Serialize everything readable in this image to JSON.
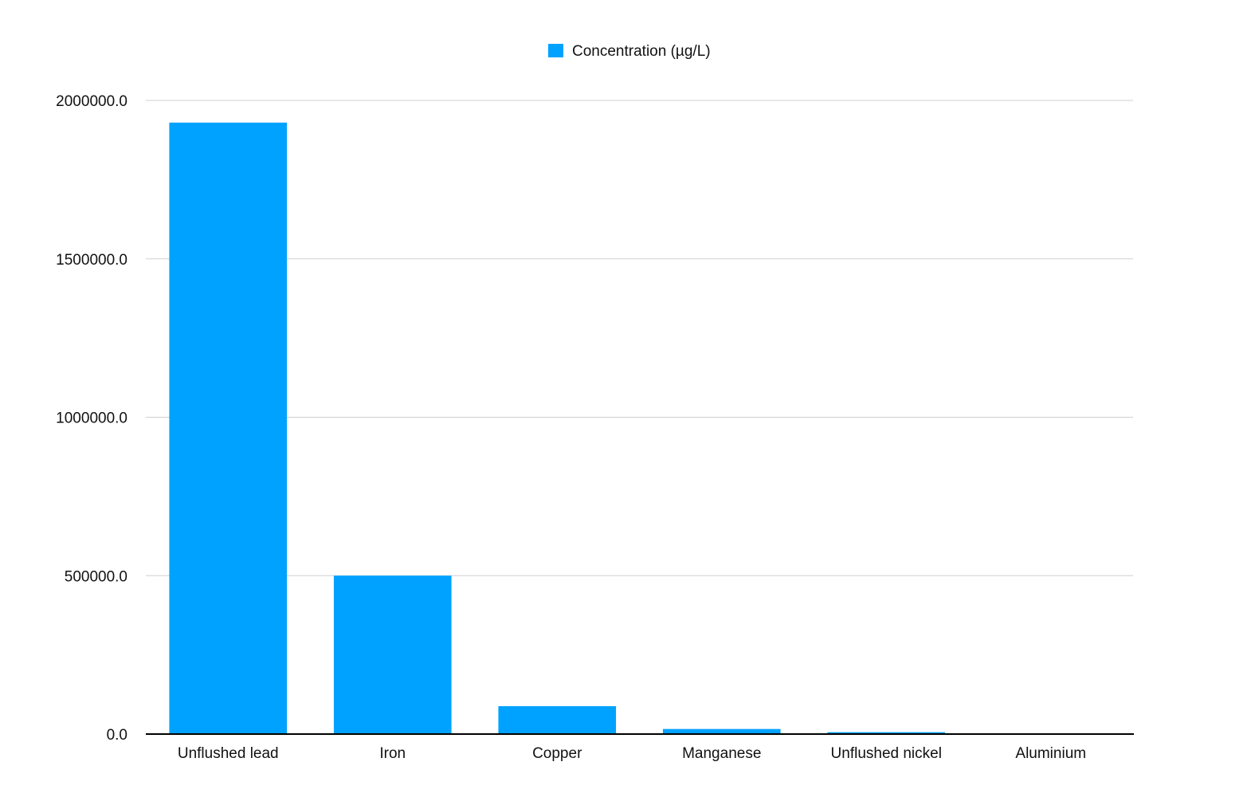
{
  "chart_data": {
    "type": "bar",
    "title": "",
    "xlabel": "",
    "ylabel": "",
    "categories": [
      "Unflushed lead",
      "Iron",
      "Copper",
      "Manganese",
      "Unflushed nickel",
      "Aluminium"
    ],
    "series": [
      {
        "name": "Concentration (µg/L)",
        "color": "#00a2ff",
        "values": [
          1930000,
          500000,
          88000,
          16000,
          6000,
          500
        ]
      }
    ],
    "ylim": [
      0,
      2000000
    ],
    "yticks": [
      "0.0",
      "500000.0",
      "1000000.0",
      "1500000.0",
      "2000000.0"
    ],
    "ytick_values": [
      0,
      500000,
      1000000,
      1500000,
      2000000
    ],
    "grid": true,
    "legend_position": "top-center"
  }
}
